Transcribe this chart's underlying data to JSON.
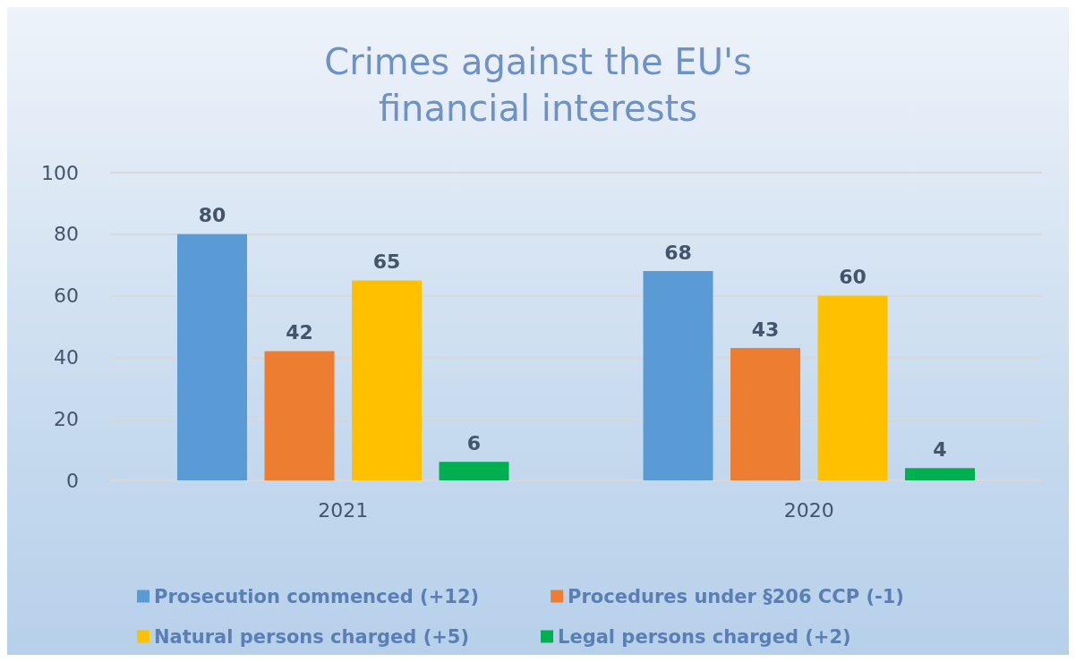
{
  "chart_data": {
    "type": "bar",
    "title": "Crimes against the EU's\nfinancial interests",
    "categories": [
      "2021",
      "2020"
    ],
    "series": [
      {
        "name": "Prosecution commenced (+12)",
        "color": "#5b9bd5",
        "values": [
          80,
          68
        ]
      },
      {
        "name": "Procedures under §206 CCP (-1)",
        "color": "#ed7d31",
        "values": [
          42,
          43
        ]
      },
      {
        "name": "Natural persons charged (+5)",
        "color": "#ffc000",
        "values": [
          65,
          60
        ]
      },
      {
        "name": "Legal persons charged (+2)",
        "color": "#00b050",
        "values": [
          6,
          4
        ]
      }
    ],
    "ylim": [
      0,
      100
    ],
    "yticks": [
      0,
      20,
      40,
      60,
      80,
      100
    ],
    "grid": "y",
    "legend": "bottom",
    "data_labels": true
  }
}
